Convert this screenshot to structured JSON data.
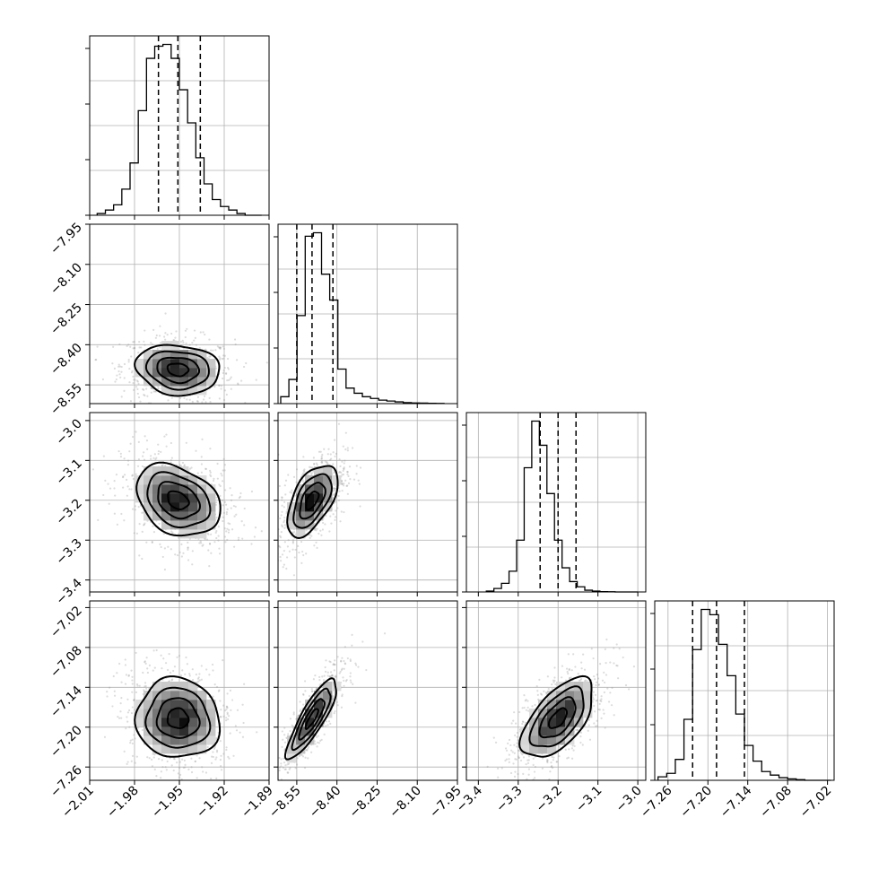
{
  "chart_data": {
    "type": "corner",
    "parameters": [
      {
        "index": 0,
        "range": [
          -2.01,
          -1.89
        ],
        "ticks": [
          -2.01,
          -1.98,
          -1.95,
          -1.92,
          -1.89
        ],
        "tick_labels": [
          "−2.01",
          "−1.98",
          "−1.95",
          "−1.92",
          "−1.89"
        ],
        "quantiles": [
          -1.964,
          -1.951,
          -1.936
        ],
        "histogram": {
          "edges_range": [
            -2.005,
            -1.895
          ],
          "counts": [
            1,
            3,
            6,
            15,
            30,
            60,
            90,
            97,
            98,
            90,
            72,
            53,
            33,
            18,
            9,
            5,
            3,
            1,
            0,
            0
          ]
        },
        "grid": true
      },
      {
        "index": 1,
        "range": [
          -8.62,
          -7.95
        ],
        "ticks": [
          -8.55,
          -8.4,
          -8.25,
          -8.1,
          -7.95
        ],
        "tick_labels": [
          "−8.55",
          "−8.40",
          "−8.25",
          "−8.10",
          "−7.95"
        ],
        "quantiles": [
          -8.55,
          -8.493,
          -8.415
        ],
        "histogram": {
          "edges_range": [
            -8.61,
            -8.0
          ],
          "counts": [
            4,
            14,
            51,
            97,
            99,
            75,
            60,
            20,
            9,
            6,
            4,
            3,
            2,
            1.5,
            1,
            0.6,
            0.4,
            0.3,
            0.2,
            0.1
          ]
        },
        "grid": true
      },
      {
        "index": 2,
        "range": [
          -3.43,
          -2.98
        ],
        "ticks": [
          -3.4,
          -3.3,
          -3.2,
          -3.1,
          -3.0
        ],
        "tick_labels": [
          "−3.4",
          "−3.3",
          "−3.2",
          "−3.1",
          "−3.0"
        ],
        "quantiles": [
          -3.245,
          -3.2,
          -3.155
        ],
        "histogram": {
          "edges_range": [
            -3.38,
            -3.0
          ],
          "counts": [
            0.5,
            2,
            5,
            12,
            30,
            72,
            99,
            85,
            57,
            30,
            14,
            6,
            3,
            1,
            0.5,
            0.2,
            0.1,
            0,
            0,
            0
          ]
        },
        "grid": true
      },
      {
        "index": 3,
        "range": [
          -7.28,
          -7.01
        ],
        "ticks": [
          -7.26,
          -7.2,
          -7.14,
          -7.08,
          -7.02
        ],
        "tick_labels": [
          "−7.26",
          "−7.20",
          "−7.14",
          "−7.08",
          "−7.02"
        ],
        "quantiles": [
          -7.223,
          -7.187,
          -7.145
        ],
        "histogram": {
          "edges_range": [
            -7.275,
            -7.015
          ],
          "counts": [
            2,
            4,
            12,
            35,
            75,
            98,
            95,
            78,
            60,
            38,
            20,
            11,
            5,
            3,
            1.5,
            0.8,
            0.4,
            0,
            0,
            0
          ]
        },
        "grid": true
      }
    ],
    "pairs": [
      {
        "x": 0,
        "y": 1,
        "peak": [
          -1.951,
          -8.493
        ],
        "sigma": [
          0.014,
          0.047
        ],
        "rho": -0.12
      },
      {
        "x": 0,
        "y": 2,
        "peak": [
          -1.951,
          -3.2
        ],
        "sigma": [
          0.014,
          0.045
        ],
        "rho": -0.3
      },
      {
        "x": 1,
        "y": 2,
        "peak": [
          -8.493,
          -3.2
        ],
        "sigma": [
          0.047,
          0.045
        ],
        "rho": 0.55
      },
      {
        "x": 0,
        "y": 3,
        "peak": [
          -1.951,
          -7.187
        ],
        "sigma": [
          0.014,
          0.03
        ],
        "rho": -0.05
      },
      {
        "x": 1,
        "y": 3,
        "peak": [
          -8.493,
          -7.187
        ],
        "sigma": [
          0.047,
          0.03
        ],
        "rho": 0.85
      },
      {
        "x": 2,
        "y": 3,
        "peak": [
          -3.2,
          -7.187
        ],
        "sigma": [
          0.045,
          0.03
        ],
        "rho": 0.6
      }
    ],
    "contour_levels_sigma": [
      0.5,
      1.0,
      1.5,
      2.0
    ],
    "colors": {
      "line": "#000000",
      "grid": "#b0b0b0",
      "density_max": "#000000",
      "density_min": "#ffffff",
      "points": "#9a9a9a"
    }
  }
}
